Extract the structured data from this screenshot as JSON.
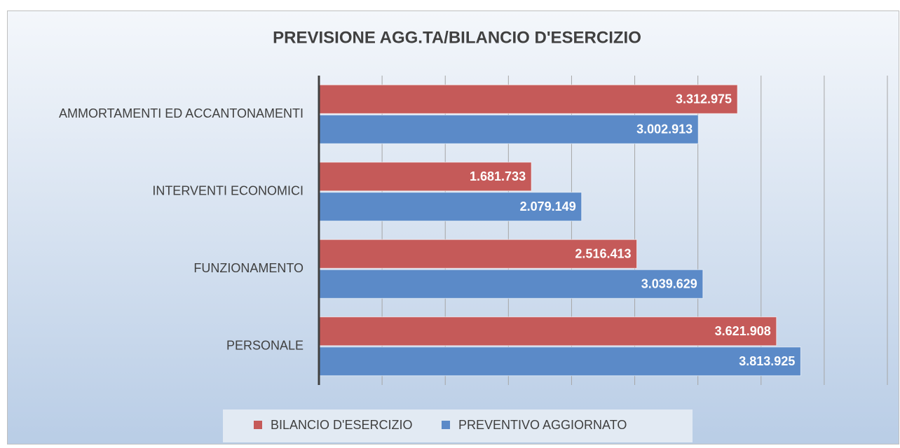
{
  "chart_data": {
    "type": "bar",
    "orientation": "horizontal",
    "title": "PREVISIONE AGG.TA/BILANCIO D'ESERCIZIO",
    "categories": [
      "AMMORTAMENTI ED ACCANTONAMENTI",
      "INTERVENTI ECONOMICI",
      "FUNZIONAMENTO",
      "PERSONALE"
    ],
    "series": [
      {
        "name": "BILANCIO D'ESERCIZIO",
        "color": "#c55a59",
        "values": [
          3312975,
          1681733,
          2516413,
          3621908
        ],
        "value_labels": [
          "3.312.975",
          "1.681.733",
          "2.516.413",
          "3.621.908"
        ]
      },
      {
        "name": "PREVENTIVO AGGIORNATO",
        "color": "#5b8ac8",
        "values": [
          3002913,
          2079149,
          3039629,
          3813925
        ],
        "value_labels": [
          "3.002.913",
          "2.079.149",
          "3.039.629",
          "3.813.925"
        ]
      }
    ],
    "xlim": [
      0,
      4500000
    ],
    "xticks": [
      0,
      500000,
      1000000,
      1500000,
      2000000,
      2500000,
      3000000,
      3500000,
      4000000,
      4500000
    ],
    "grid": true,
    "legend": "bottom"
  }
}
